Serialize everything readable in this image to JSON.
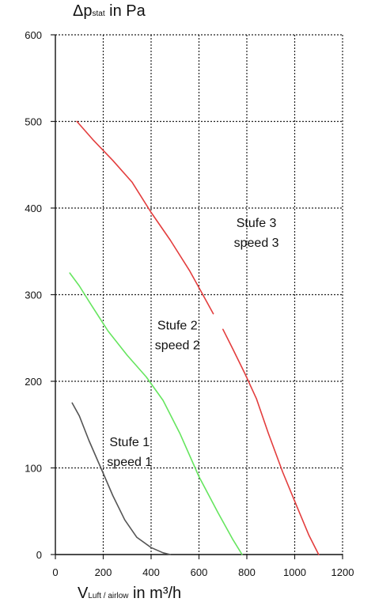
{
  "chart_data": {
    "type": "line",
    "xlim": [
      0,
      1200
    ],
    "ylim": [
      0,
      600
    ],
    "x_ticks": [
      0,
      200,
      400,
      600,
      800,
      1000,
      1200
    ],
    "y_ticks": [
      0,
      100,
      200,
      300,
      400,
      500,
      600
    ],
    "grid": true,
    "grid_style": "dotted",
    "y_title": {
      "prefix": "Δp",
      "sub": "stat",
      "suffix": " in Pa"
    },
    "x_title": {
      "prefix": "V",
      "sub": "Luft / airlow",
      "suffix": " in m³/h"
    },
    "series": [
      {
        "color": "#555555",
        "label_lines": [
          "Stufe 1",
          "speed 1"
        ],
        "label_at": [
          310,
          125
        ],
        "segments": [
          [
            [
              70,
              175
            ],
            [
              100,
              160
            ],
            [
              140,
              132
            ],
            [
              190,
              100
            ],
            [
              240,
              68
            ],
            [
              290,
              40
            ],
            [
              340,
              20
            ],
            [
              400,
              8
            ],
            [
              450,
              2
            ],
            [
              480,
              0
            ]
          ]
        ]
      },
      {
        "color": "#66e55f",
        "label_lines": [
          "Stufe 2",
          "speed 2"
        ],
        "label_at": [
          510,
          260
        ],
        "segments": [
          [
            [
              60,
              325
            ],
            [
              100,
              310
            ],
            [
              150,
              288
            ],
            [
              220,
              258
            ],
            [
              300,
              230
            ],
            [
              380,
              205
            ],
            [
              450,
              178
            ],
            [
              520,
              140
            ],
            [
              600,
              90
            ],
            [
              680,
              48
            ],
            [
              740,
              18
            ],
            [
              780,
              0
            ]
          ]
        ]
      },
      {
        "color": "#e33d3d",
        "label_lines": [
          "Stufe 3",
          "speed 3"
        ],
        "label_at": [
          840,
          378
        ],
        "segments": [
          [
            [
              90,
              500
            ],
            [
              160,
              478
            ],
            [
              240,
              455
            ],
            [
              320,
              430
            ],
            [
              400,
              395
            ],
            [
              480,
              363
            ],
            [
              560,
              328
            ],
            [
              620,
              298
            ],
            [
              660,
              278
            ]
          ],
          [
            [
              700,
              260
            ],
            [
              740,
              238
            ],
            [
              790,
              210
            ],
            [
              840,
              180
            ],
            [
              890,
              140
            ],
            [
              950,
              95
            ],
            [
              1010,
              55
            ],
            [
              1060,
              22
            ],
            [
              1100,
              0
            ]
          ]
        ]
      }
    ]
  }
}
